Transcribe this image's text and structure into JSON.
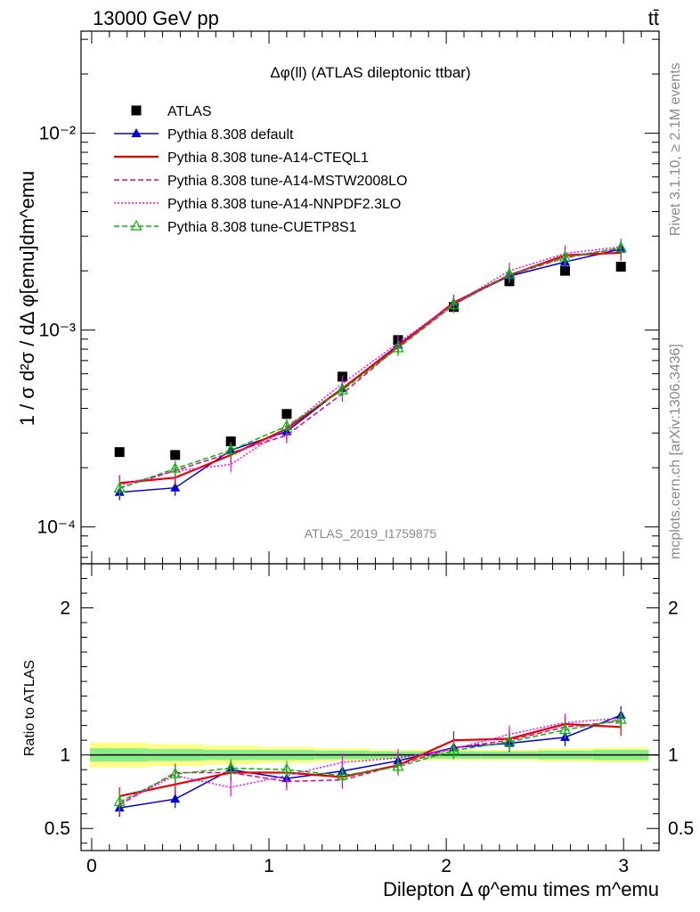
{
  "header": {
    "left": "13000 GeV pp",
    "right": "tt̄"
  },
  "side_labels": {
    "rivet": "Rivet 3.1.10, ≥ 2.1M events",
    "mcplots": "mcplots.cern.ch [arXiv:1306.3436]"
  },
  "analysis_id": "ATLAS_2019_I1759875",
  "chart_data": [
    {
      "type": "scatter",
      "panel": "main",
      "title": "Δφ(ll) (ATLAS dileptonic ttbar)",
      "ylabel": "1 / σ d²σ / dΔ φ[emu]dm^emu",
      "xlabel": "Dilepton Δ φ^emu times m^emu",
      "yscale": "log",
      "ylim": [
        6.5e-05,
        0.033
      ],
      "xlim": [
        -0.06,
        3.2
      ],
      "y_ticks": [
        "10⁻⁴",
        "10⁻³",
        "10⁻²"
      ],
      "x_ticks": [
        "0",
        "1",
        "2",
        "3"
      ],
      "legend_position": "top-left",
      "x": [
        0.157,
        0.471,
        0.785,
        1.1,
        1.414,
        1.728,
        2.042,
        2.356,
        2.67,
        2.985
      ],
      "series": [
        {
          "name": "ATLAS",
          "color": "#000000",
          "marker": "square",
          "line": "none",
          "values": [
            0.00024,
            0.000232,
            0.000272,
            0.000375,
            0.00058,
            0.00089,
            0.00131,
            0.00177,
            0.002,
            0.0021
          ]
        },
        {
          "name": "Pythia 8.308 default",
          "color": "#0000dd",
          "marker": "triangle",
          "line": "solid",
          "values": [
            0.00015,
            0.000158,
            0.000245,
            0.000305,
            0.000505,
            0.00084,
            0.00137,
            0.00188,
            0.00222,
            0.00258
          ]
        },
        {
          "name": "Pythia 8.308 tune-A14-CTEQL1",
          "color": "#ee0000",
          "marker": "none",
          "line": "solid-thick",
          "values": [
            0.000167,
            0.000178,
            0.000232,
            0.000315,
            0.000505,
            0.00083,
            0.00138,
            0.0019,
            0.0024,
            0.00247
          ]
        },
        {
          "name": "Pythia 8.308 tune-A14-MSTW2008LO",
          "color": "#ee0088",
          "marker": "none",
          "line": "dashed",
          "values": [
            0.000158,
            0.000193,
            0.000238,
            0.000292,
            0.000475,
            0.00082,
            0.00135,
            0.0019,
            0.00233,
            0.0026
          ]
        },
        {
          "name": "Pythia 8.308 tune-A14-NNPDF2.3LO",
          "color": "#ff00ff",
          "marker": "none",
          "line": "dotted",
          "values": [
            0.000163,
            0.000192,
            0.000208,
            0.000318,
            0.000535,
            0.00086,
            0.00136,
            0.002,
            0.00245,
            0.00265
          ]
        },
        {
          "name": "Pythia 8.308 tune-CUETP8S1",
          "color": "#00bb00",
          "marker": "open-triangle",
          "line": "dashed",
          "values": [
            0.000157,
            0.000198,
            0.000245,
            0.000325,
            0.000495,
            0.00081,
            0.00134,
            0.00192,
            0.00234,
            0.00262
          ]
        }
      ]
    },
    {
      "type": "line",
      "panel": "ratio",
      "ylabel": "Ratio to ATLAS",
      "ylim": [
        0.35,
        2.3
      ],
      "y_ticks": [
        "0.5",
        "1",
        "2"
      ],
      "x": [
        0.157,
        0.471,
        0.785,
        1.1,
        1.414,
        1.728,
        2.042,
        2.356,
        2.67,
        2.985
      ],
      "bands": {
        "edges": [
          -0.01,
          0.314,
          0.628,
          0.942,
          1.257,
          1.571,
          1.885,
          2.199,
          2.513,
          2.827,
          3.142
        ],
        "stat_half_width": [
          0.045,
          0.04,
          0.035,
          0.035,
          0.03,
          0.025,
          0.025,
          0.025,
          0.03,
          0.035
        ],
        "total_half_width": [
          0.085,
          0.075,
          0.065,
          0.055,
          0.045,
          0.035,
          0.035,
          0.035,
          0.045,
          0.05
        ],
        "stat_color": "#88ee88",
        "total_color": "#ffff88"
      },
      "series": [
        {
          "name": "Pythia 8.308 default",
          "values": [
            0.64,
            0.7,
            0.9,
            0.84,
            0.89,
            0.96,
            1.05,
            1.08,
            1.12,
            1.27
          ]
        },
        {
          "name": "Pythia 8.308 tune-A14-CTEQL1",
          "values": [
            0.72,
            0.8,
            0.88,
            0.88,
            0.85,
            0.93,
            1.1,
            1.11,
            1.21,
            1.19
          ]
        },
        {
          "name": "Pythia 8.308 tune-A14-MSTW2008LO",
          "values": [
            0.66,
            0.88,
            0.88,
            0.82,
            0.83,
            0.93,
            1.05,
            1.1,
            1.19,
            1.23
          ]
        },
        {
          "name": "Pythia 8.308 tune-A14-NNPDF2.3LO",
          "values": [
            0.67,
            0.86,
            0.78,
            0.86,
            0.95,
            0.98,
            1.04,
            1.14,
            1.22,
            1.25
          ]
        },
        {
          "name": "Pythia 8.308 tune-CUETP8S1",
          "values": [
            0.68,
            0.87,
            0.91,
            0.9,
            0.86,
            0.92,
            1.03,
            1.09,
            1.17,
            1.24
          ]
        }
      ]
    }
  ]
}
